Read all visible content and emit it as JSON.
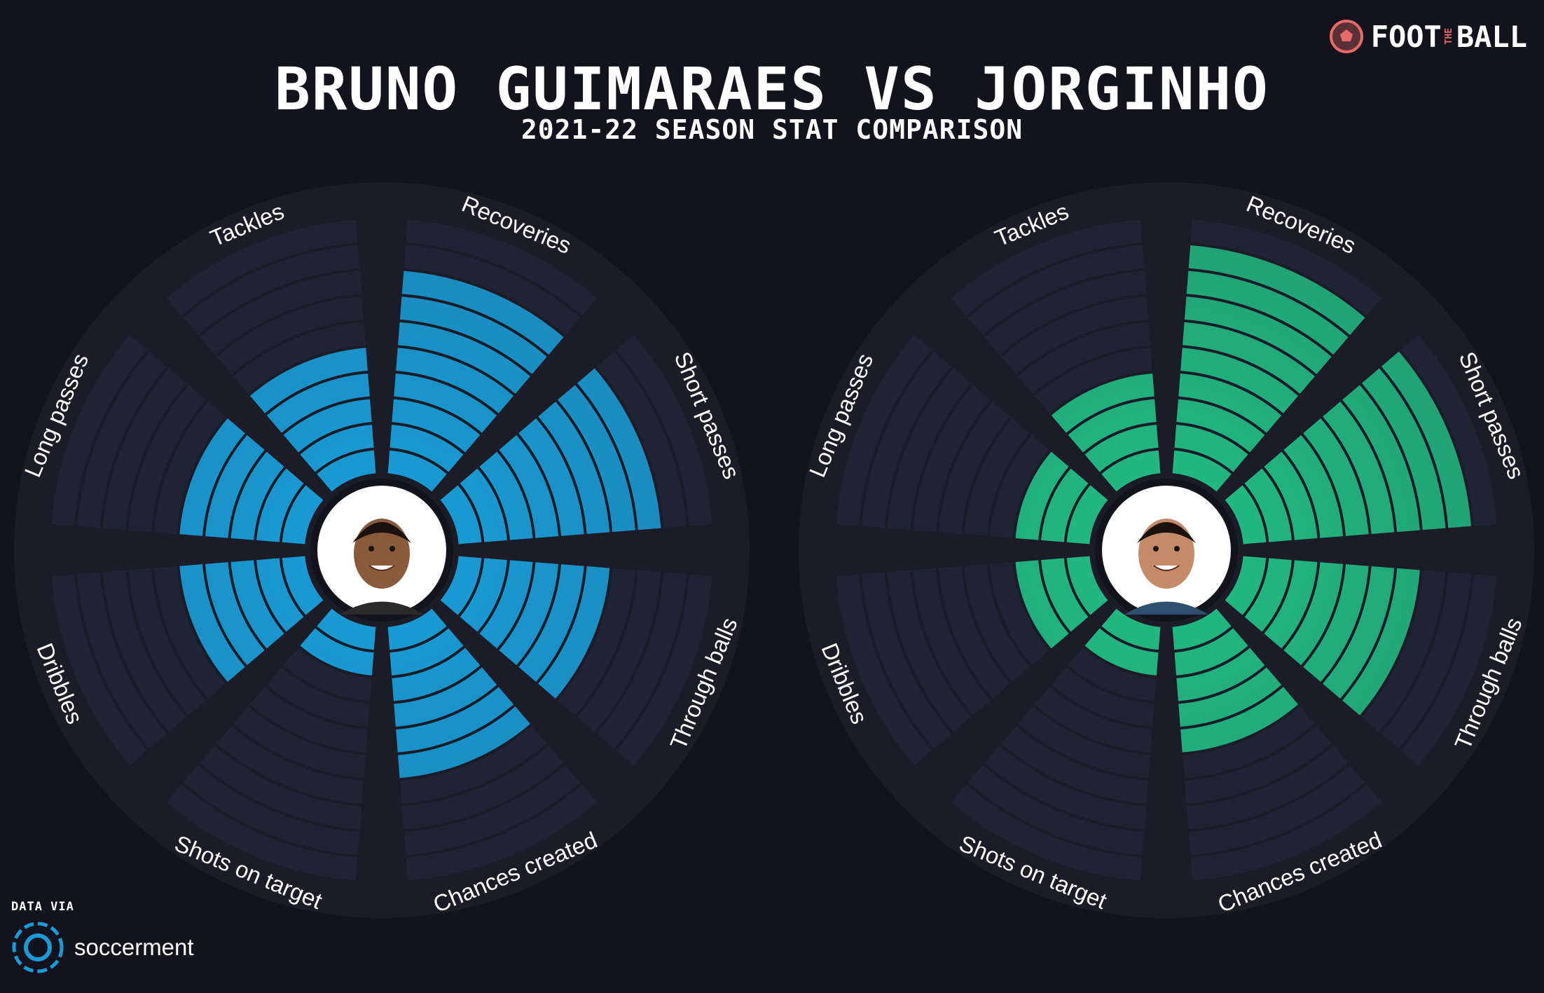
{
  "header": {
    "title": "BRUNO GUIMARAES VS JORGINHO",
    "subtitle": "2021-22 SEASON STAT COMPARISON"
  },
  "brand": {
    "logo_text_left": "FOOT",
    "logo_text_small": "THE",
    "logo_text_right": "BALL",
    "color": "#e66a6a"
  },
  "source": {
    "label": "DATA VIA",
    "name": "soccerment",
    "color": "#1a9ad6"
  },
  "colors": {
    "background": "#12131d",
    "ring": "#1b1c28",
    "empty_segment": "#1f2333",
    "player1": "#1a9bd4",
    "player2": "#22b882"
  },
  "chart_data": [
    {
      "type": "polar-bar",
      "player": "Bruno Guimaraes",
      "color": "#1a9bd4",
      "scale_max": 10,
      "categories": [
        "Recoveries",
        "Short passes",
        "Through balls",
        "Chances created",
        "Shots on target",
        "Dribbles",
        "Long passes",
        "Tackles"
      ],
      "values": [
        8,
        8,
        6,
        6,
        2,
        5,
        5,
        5
      ]
    },
    {
      "type": "polar-bar",
      "player": "Jorginho",
      "color": "#22b882",
      "scale_max": 10,
      "categories": [
        "Recoveries",
        "Short passes",
        "Through balls",
        "Chances created",
        "Shots on target",
        "Dribbles",
        "Long passes",
        "Tackles"
      ],
      "values": [
        9,
        9,
        7,
        5,
        2,
        3,
        3,
        4
      ]
    }
  ]
}
